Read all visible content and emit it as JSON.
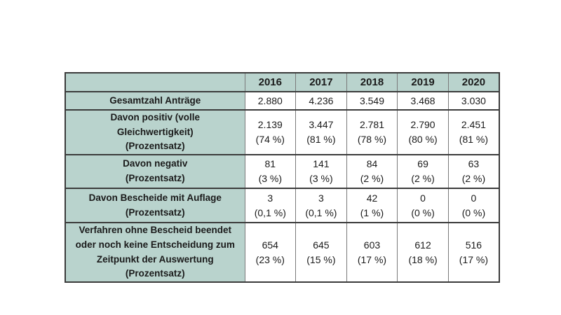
{
  "page": {
    "background": "#ffffff"
  },
  "colors": {
    "header_bg": "#b9d3cd",
    "label_bg": "#b9d3cd",
    "cell_bg": "#ffffff",
    "border_dark": "#3b3b3b",
    "border_light": "#7a7a7a",
    "text": "#1a1a1a"
  },
  "chart_data": {
    "type": "table",
    "columns": [
      "",
      "2016",
      "2017",
      "2018",
      "2019",
      "2020"
    ],
    "rows": [
      [
        "Gesamtzahl Anträge",
        "2.880",
        "4.236",
        "3.549",
        "3.468",
        "3.030"
      ],
      [
        "Davon positiv (volle Gleichwertigkeit) (Prozentsatz)",
        "2.139 (74 %)",
        "3.447 (81 %)",
        "2.781 (78 %)",
        "2.790 (80 %)",
        "2.451 (81 %)"
      ],
      [
        "Davon negativ (Prozentsatz)",
        "81 (3 %)",
        "141 (3 %)",
        "84 (2 %)",
        "69 (2 %)",
        "63 (2 %)"
      ],
      [
        "Davon Bescheide mit Auflage (Prozentsatz)",
        "3 (0,1 %)",
        "3 (0,1 %)",
        "42 (1 %)",
        "0 (0 %)",
        "0 (0 %)"
      ],
      [
        "Verfahren ohne Bescheid beendet oder noch keine Entscheidung zum Zeitpunkt der Auswertung (Prozentsatz)",
        "654 (23 %)",
        "645 (15 %)",
        "603 (17 %)",
        "612 (18 %)",
        "516 (17 %)"
      ]
    ]
  },
  "table": {
    "years": [
      "2016",
      "2017",
      "2018",
      "2019",
      "2020"
    ],
    "rows": [
      {
        "label_lines": [
          "Gesamtzahl Anträge"
        ],
        "cells": [
          {
            "main": "2.880"
          },
          {
            "main": "4.236"
          },
          {
            "main": "3.549"
          },
          {
            "main": "3.468"
          },
          {
            "main": "3.030"
          }
        ]
      },
      {
        "label_lines": [
          "Davon positiv (volle",
          "Gleichwertigkeit)",
          "(Prozentsatz)"
        ],
        "cells": [
          {
            "main": "2.139",
            "sub": "(74 %)"
          },
          {
            "main": "3.447",
            "sub": "(81 %)"
          },
          {
            "main": "2.781",
            "sub": "(78 %)"
          },
          {
            "main": "2.790",
            "sub": "(80 %)"
          },
          {
            "main": "2.451",
            "sub": "(81 %)"
          }
        ]
      },
      {
        "label_lines": [
          "Davon negativ",
          "(Prozentsatz)"
        ],
        "cells": [
          {
            "main": "81",
            "sub": "(3 %)"
          },
          {
            "main": "141",
            "sub": "(3 %)"
          },
          {
            "main": "84",
            "sub": "(2 %)"
          },
          {
            "main": "69",
            "sub": "(2 %)"
          },
          {
            "main": "63",
            "sub": "(2 %)"
          }
        ]
      },
      {
        "label_lines": [
          "Davon Bescheide mit Auflage",
          "(Prozentsatz)"
        ],
        "cells": [
          {
            "main": "3",
            "sub": "(0,1 %)"
          },
          {
            "main": "3",
            "sub": "(0,1 %)"
          },
          {
            "main": "42",
            "sub": "(1 %)"
          },
          {
            "main": "0",
            "sub": "(0 %)"
          },
          {
            "main": "0",
            "sub": "(0 %)"
          }
        ]
      },
      {
        "label_lines": [
          "Verfahren ohne Bescheid beendet",
          "oder noch keine Entscheidung zum",
          "Zeitpunkt der Auswertung",
          "(Prozentsatz)"
        ],
        "cells": [
          {
            "main": "654",
            "sub": "(23 %)"
          },
          {
            "main": "645",
            "sub": "(15 %)"
          },
          {
            "main": "603",
            "sub": "(17 %)"
          },
          {
            "main": "612",
            "sub": "(18 %)"
          },
          {
            "main": "516",
            "sub": "(17 %)"
          }
        ]
      }
    ]
  }
}
